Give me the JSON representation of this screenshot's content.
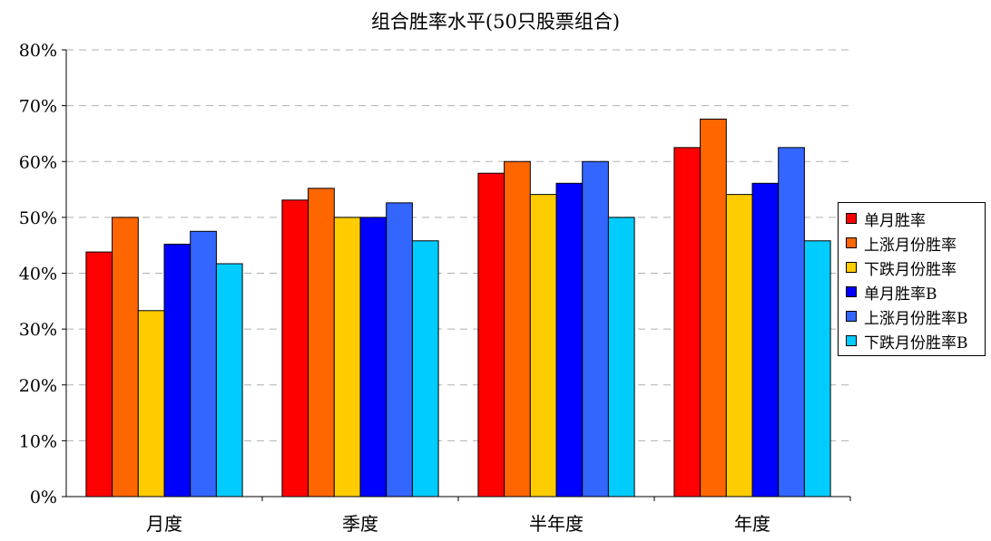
{
  "chart_data": {
    "type": "bar",
    "title": "组合胜率水平(50只股票组合)",
    "categories": [
      "月度",
      "季度",
      "半年度",
      "年度"
    ],
    "series": [
      {
        "name": "单月胜率",
        "color": "#FF0000",
        "values": [
          43.8,
          53.1,
          57.9,
          62.5
        ]
      },
      {
        "name": "上涨月份胜率",
        "color": "#FF6600",
        "values": [
          50.0,
          55.2,
          60.0,
          67.6
        ]
      },
      {
        "name": "下跌月份胜率",
        "color": "#FFCC00",
        "values": [
          33.3,
          50.0,
          54.1,
          54.1
        ]
      },
      {
        "name": "单月胜率B",
        "color": "#0000FF",
        "values": [
          45.2,
          50.0,
          56.1,
          56.1
        ]
      },
      {
        "name": "上涨月份胜率B",
        "color": "#3366FF",
        "values": [
          47.5,
          52.6,
          60.0,
          62.5
        ]
      },
      {
        "name": "下跌月份胜率B",
        "color": "#00CCFF",
        "values": [
          41.7,
          45.8,
          50.0,
          45.8
        ]
      }
    ],
    "yticks": [
      "0%",
      "10%",
      "20%",
      "30%",
      "40%",
      "50%",
      "60%",
      "70%",
      "80%"
    ],
    "ylim": [
      0,
      80
    ],
    "xlabel": "",
    "ylabel": "",
    "grid": "horizontal-dashed",
    "legend_position": "right"
  }
}
